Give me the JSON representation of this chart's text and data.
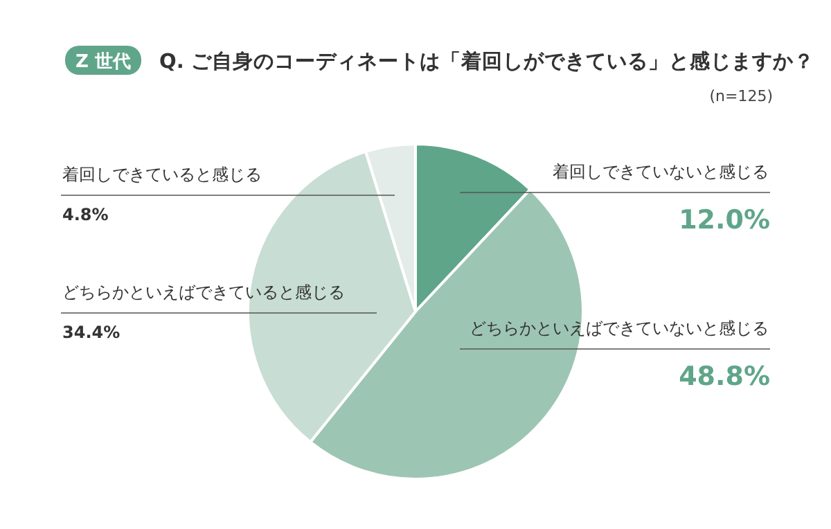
{
  "chart_data": {
    "type": "pie",
    "title": "Q. ご自身のコーディネートは「着回しができている」と感じますか？",
    "annotations": [
      "Z 世代",
      "(n=125)"
    ],
    "categories": [
      "着回しできていないと感じる",
      "どちらかといえばできていないと感じる",
      "どちらかといえばできていると感じる",
      "着回しできていると感じる"
    ],
    "values": [
      12.0,
      48.8,
      34.4,
      4.8
    ],
    "value_labels": [
      "12.0%",
      "48.8%",
      "34.4%",
      "4.8%"
    ],
    "colors": [
      "#5fa58a",
      "#9dc5b3",
      "#c8ddd3",
      "#e3ece8"
    ]
  }
}
